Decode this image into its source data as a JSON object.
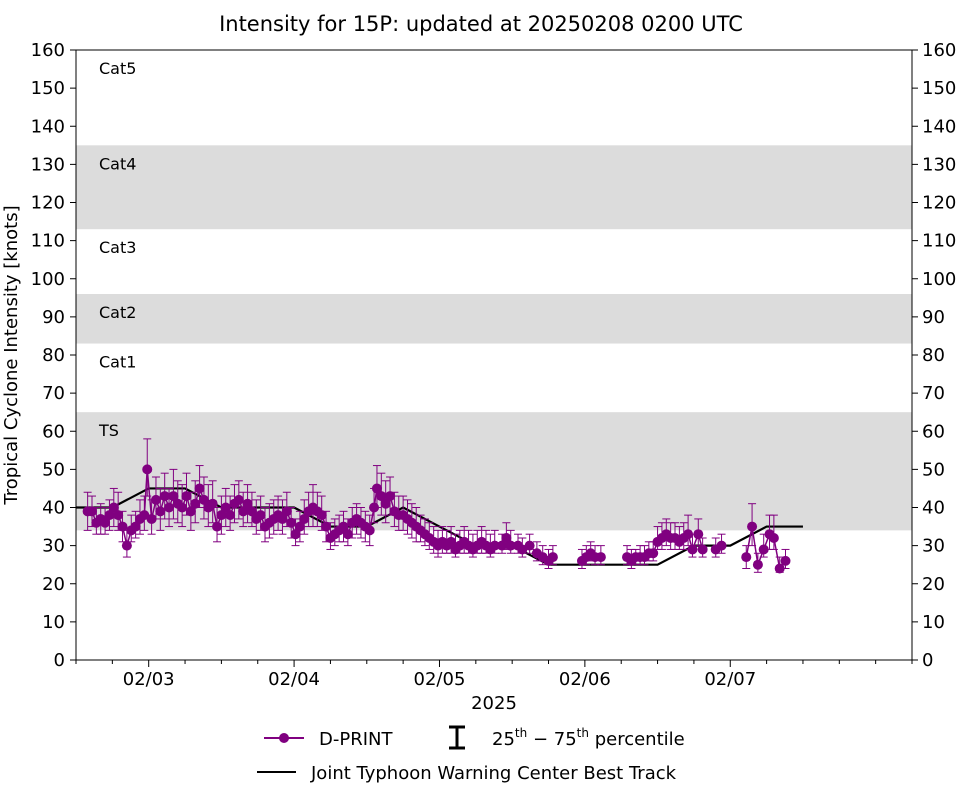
{
  "chart_data": {
    "type": "line",
    "title": "Intensity for 15P: updated at 20250208 0200 UTC",
    "xlabel": "2025",
    "ylabel": "Tropical Cyclone Intensity [knots]",
    "ylim": [
      0,
      160
    ],
    "xlim_days": [
      0.0,
      5.75
    ],
    "x_origin": "02/02 12 UTC",
    "yticks": [
      0,
      10,
      20,
      30,
      40,
      50,
      60,
      70,
      80,
      90,
      100,
      110,
      120,
      130,
      140,
      150,
      160
    ],
    "xticks": [
      {
        "day": 0.5,
        "label": "02/03"
      },
      {
        "day": 1.5,
        "label": "02/04"
      },
      {
        "day": 2.5,
        "label": "02/05"
      },
      {
        "day": 3.5,
        "label": "02/06"
      },
      {
        "day": 4.5,
        "label": "02/07"
      }
    ],
    "minor_xticks": [
      0.0,
      0.25,
      0.75,
      1.0,
      1.25,
      1.75,
      2.0,
      2.25,
      2.75,
      3.0,
      3.25,
      3.75,
      4.0,
      4.25,
      4.75,
      5.0,
      5.25,
      5.5,
      5.75
    ],
    "bands": [
      {
        "label": "TS",
        "min": 34,
        "max": 65,
        "shaded": true
      },
      {
        "label": "Cat1",
        "min": 65,
        "max": 83,
        "shaded": false
      },
      {
        "label": "Cat2",
        "min": 83,
        "max": 96,
        "shaded": true
      },
      {
        "label": "Cat3",
        "min": 96,
        "max": 113,
        "shaded": false
      },
      {
        "label": "Cat4",
        "min": 113,
        "max": 135,
        "shaded": true
      },
      {
        "label": "Cat5",
        "min": 135,
        "max": 160,
        "shaded": false
      }
    ],
    "band_color": "#dcdcdc",
    "series": [
      {
        "name": "D-PRINT",
        "color": "#800080",
        "points": [
          [
            0.08,
            39,
            34,
            44
          ],
          [
            0.11,
            39,
            35,
            43
          ],
          [
            0.14,
            36,
            33,
            40
          ],
          [
            0.17,
            37,
            33,
            41
          ],
          [
            0.2,
            36,
            33,
            40
          ],
          [
            0.23,
            38,
            34,
            42
          ],
          [
            0.26,
            40,
            35,
            45
          ],
          [
            0.29,
            38,
            34,
            44
          ],
          [
            0.32,
            35,
            31,
            39
          ],
          [
            0.35,
            30,
            27,
            34
          ],
          [
            0.38,
            34,
            31,
            38
          ],
          [
            0.41,
            35,
            32,
            39
          ],
          [
            0.44,
            37,
            33,
            42
          ],
          [
            0.47,
            38,
            34,
            43
          ],
          [
            0.49,
            50,
            43,
            58
          ],
          [
            0.52,
            37,
            33,
            42
          ],
          [
            0.55,
            42,
            37,
            48
          ],
          [
            0.58,
            39,
            34,
            45
          ],
          [
            0.61,
            43,
            37,
            49
          ],
          [
            0.64,
            40,
            35,
            45
          ],
          [
            0.67,
            43,
            37,
            50
          ],
          [
            0.7,
            41,
            36,
            47
          ],
          [
            0.73,
            40,
            35,
            46
          ],
          [
            0.76,
            43,
            38,
            49
          ],
          [
            0.79,
            39,
            34,
            44
          ],
          [
            0.82,
            41,
            36,
            47
          ],
          [
            0.85,
            45,
            40,
            51
          ],
          [
            0.88,
            42,
            37,
            48
          ],
          [
            0.91,
            40,
            35,
            46
          ],
          [
            0.94,
            41,
            36,
            47
          ],
          [
            0.97,
            35,
            31,
            40
          ],
          [
            1.0,
            38,
            33,
            43
          ],
          [
            1.03,
            40,
            35,
            45
          ],
          [
            1.06,
            38,
            34,
            43
          ],
          [
            1.09,
            41,
            36,
            46
          ],
          [
            1.12,
            42,
            37,
            47
          ],
          [
            1.15,
            39,
            35,
            44
          ],
          [
            1.18,
            41,
            36,
            46
          ],
          [
            1.21,
            39,
            35,
            44
          ],
          [
            1.24,
            37,
            33,
            42
          ],
          [
            1.27,
            38,
            34,
            43
          ],
          [
            1.3,
            35,
            31,
            40
          ],
          [
            1.33,
            36,
            32,
            41
          ],
          [
            1.36,
            37,
            33,
            42
          ],
          [
            1.39,
            38,
            34,
            43
          ],
          [
            1.42,
            37,
            33,
            42
          ],
          [
            1.45,
            39,
            35,
            44
          ],
          [
            1.48,
            36,
            32,
            40
          ],
          [
            1.51,
            33,
            30,
            37
          ],
          [
            1.54,
            35,
            31,
            39
          ],
          [
            1.57,
            37,
            33,
            42
          ],
          [
            1.6,
            39,
            35,
            44
          ],
          [
            1.63,
            40,
            35,
            46
          ],
          [
            1.66,
            39,
            35,
            44
          ],
          [
            1.69,
            38,
            34,
            43
          ],
          [
            1.72,
            35,
            31,
            39
          ],
          [
            1.75,
            32,
            29,
            36
          ],
          [
            1.78,
            33,
            30,
            37
          ],
          [
            1.81,
            34,
            31,
            38
          ],
          [
            1.84,
            35,
            31,
            39
          ],
          [
            1.87,
            33,
            30,
            37
          ],
          [
            1.9,
            36,
            32,
            40
          ],
          [
            1.93,
            37,
            33,
            41
          ],
          [
            1.96,
            36,
            32,
            40
          ],
          [
            1.99,
            35,
            31,
            39
          ],
          [
            2.02,
            34,
            30,
            38
          ],
          [
            2.05,
            40,
            36,
            45
          ],
          [
            2.07,
            45,
            40,
            51
          ],
          [
            2.1,
            43,
            38,
            49
          ],
          [
            2.13,
            41,
            36,
            47
          ],
          [
            2.16,
            43,
            38,
            48
          ],
          [
            2.19,
            39,
            35,
            44
          ],
          [
            2.22,
            38,
            34,
            43
          ],
          [
            2.25,
            38,
            34,
            43
          ],
          [
            2.28,
            37,
            33,
            42
          ],
          [
            2.31,
            36,
            32,
            41
          ],
          [
            2.34,
            35,
            31,
            40
          ],
          [
            2.37,
            34,
            31,
            38
          ],
          [
            2.4,
            33,
            30,
            37
          ],
          [
            2.43,
            32,
            29,
            36
          ],
          [
            2.46,
            31,
            28,
            35
          ],
          [
            2.49,
            30,
            27,
            34
          ],
          [
            2.52,
            31,
            28,
            35
          ],
          [
            2.55,
            30,
            28,
            34
          ],
          [
            2.58,
            31,
            28,
            35
          ],
          [
            2.61,
            29,
            27,
            33
          ],
          [
            2.64,
            30,
            28,
            34
          ],
          [
            2.67,
            31,
            28,
            35
          ],
          [
            2.7,
            30,
            28,
            34
          ],
          [
            2.73,
            29,
            27,
            33
          ],
          [
            2.76,
            30,
            28,
            34
          ],
          [
            2.79,
            31,
            28,
            35
          ],
          [
            2.82,
            30,
            28,
            34
          ],
          [
            2.85,
            29,
            27,
            33
          ],
          [
            2.88,
            30,
            28,
            34
          ],
          [
            2.93,
            30,
            28,
            33
          ],
          [
            2.96,
            32,
            29,
            36
          ],
          [
            2.99,
            30,
            28,
            34
          ],
          [
            3.04,
            30,
            28,
            33
          ],
          [
            3.07,
            29,
            27,
            32
          ],
          [
            3.12,
            30,
            28,
            33
          ],
          [
            3.17,
            28,
            26,
            31
          ],
          [
            3.21,
            27,
            25,
            30
          ],
          [
            3.25,
            26,
            24,
            29
          ],
          [
            3.28,
            27,
            25,
            30
          ],
          [
            3.48,
            26,
            24,
            29
          ],
          [
            3.51,
            27,
            25,
            30
          ],
          [
            3.54,
            28,
            26,
            31
          ],
          [
            3.57,
            27,
            25,
            30
          ],
          [
            3.61,
            27,
            25,
            30
          ],
          [
            3.79,
            27,
            25,
            30
          ],
          [
            3.82,
            26,
            24,
            29
          ],
          [
            3.85,
            27,
            25,
            29
          ],
          [
            3.88,
            27,
            25,
            30
          ],
          [
            3.91,
            27,
            25,
            30
          ],
          [
            3.94,
            28,
            26,
            31
          ],
          [
            3.97,
            28,
            26,
            31
          ],
          [
            4.0,
            31,
            29,
            35
          ],
          [
            4.03,
            32,
            29,
            36
          ],
          [
            4.06,
            33,
            30,
            37
          ],
          [
            4.09,
            32,
            29,
            36
          ],
          [
            4.12,
            32,
            29,
            36
          ],
          [
            4.15,
            31,
            29,
            35
          ],
          [
            4.18,
            32,
            29,
            36
          ],
          [
            4.21,
            33,
            30,
            38
          ],
          [
            4.24,
            29,
            27,
            33
          ],
          [
            4.28,
            33,
            30,
            37
          ],
          [
            4.31,
            29,
            27,
            32
          ],
          [
            4.4,
            29,
            27,
            32
          ],
          [
            4.44,
            30,
            28,
            33
          ],
          [
            4.61,
            27,
            24,
            30
          ],
          [
            4.65,
            35,
            30,
            41
          ],
          [
            4.69,
            25,
            23,
            28
          ],
          [
            4.73,
            29,
            27,
            33
          ],
          [
            4.77,
            33,
            29,
            38
          ],
          [
            4.8,
            32,
            29,
            38
          ],
          [
            4.84,
            24,
            23,
            27
          ],
          [
            4.88,
            26,
            24,
            29
          ]
        ]
      },
      {
        "name": "Joint Typhoon Warning Center Best Track",
        "color": "#000000",
        "points": [
          [
            0.0,
            40
          ],
          [
            0.25,
            40
          ],
          [
            0.5,
            45
          ],
          [
            0.75,
            45
          ],
          [
            1.0,
            40
          ],
          [
            1.25,
            40
          ],
          [
            1.5,
            40
          ],
          [
            1.75,
            35
          ],
          [
            2.0,
            35
          ],
          [
            2.25,
            40
          ],
          [
            2.5,
            35
          ],
          [
            2.75,
            30
          ],
          [
            3.0,
            30
          ],
          [
            3.25,
            25
          ],
          [
            3.5,
            25
          ],
          [
            3.75,
            25
          ],
          [
            4.0,
            25
          ],
          [
            4.25,
            30
          ],
          [
            4.5,
            30
          ],
          [
            4.75,
            35
          ],
          [
            5.0,
            35
          ]
        ]
      }
    ],
    "legend": {
      "placement": "bottom-center",
      "entries": [
        "D-PRINT",
        "25th − 75th percentile",
        "Joint Typhoon Warning Center Best Track"
      ],
      "percentile_base": "25",
      "percentile_base2": "75",
      "percentile_sup": "th",
      "percentile_dash": " − ",
      "percentile_word": "percentile"
    }
  }
}
